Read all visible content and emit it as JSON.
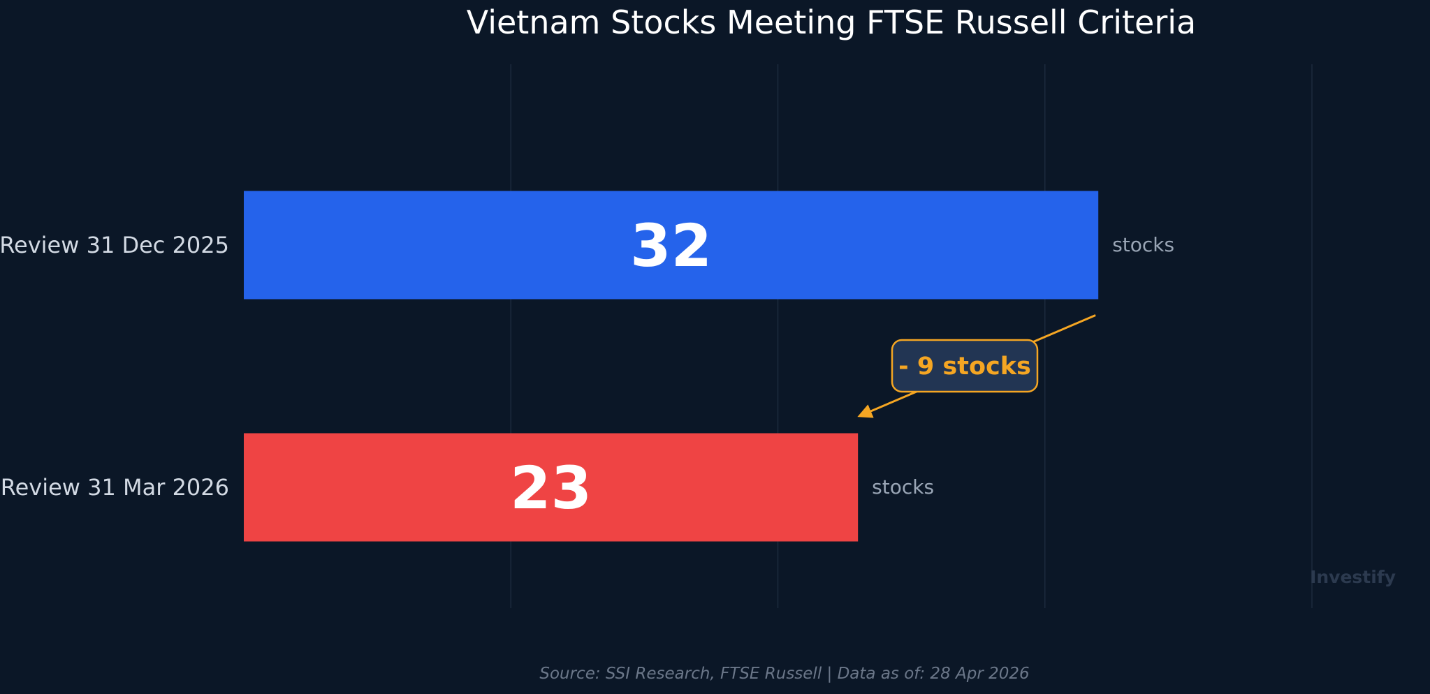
{
  "chart_data": {
    "type": "bar",
    "orientation": "horizontal",
    "title": "Vietnam Stocks Meeting FTSE Russell Criteria",
    "categories": [
      "Review 31 Dec 2025",
      "Review 31 Mar 2026"
    ],
    "values": [
      32,
      23
    ],
    "bar_colors": [
      "#2563eb",
      "#ef4444"
    ],
    "unit_label": "stocks",
    "xlim": [
      0,
      40
    ],
    "grid": true,
    "annotation": {
      "text": "- 9 stocks",
      "color": "#f5a623",
      "from_category": "Review 31 Dec 2025",
      "to_category": "Review 31 Mar 2026"
    },
    "watermark": "Investify",
    "source": "Source: SSI Research, FTSE Russell  |  Data as of: 28 Apr 2026"
  },
  "colors": {
    "background": "#0b1727",
    "grid": "#1c2a3d",
    "annotation_box": "#223553"
  }
}
